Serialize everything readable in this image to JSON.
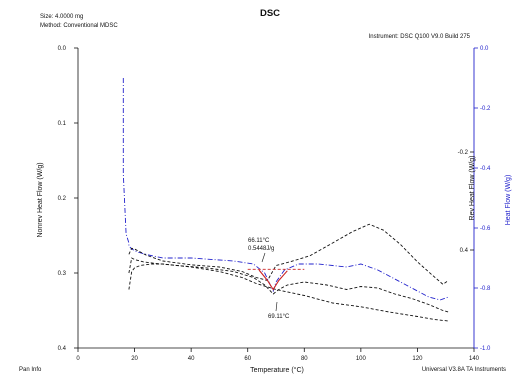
{
  "header": {
    "title": "DSC",
    "size": "Size:  4.0000 mg",
    "method": "Method: Conventional MDSC",
    "instrument": "Instrument: DSC Q100 V9.0 Build 275"
  },
  "footer": {
    "left": "Pan Info",
    "right": "Universal V3.8A TA Instruments"
  },
  "annotations": {
    "peak_temp": "66.11°C",
    "peak_enthalpy": "0.5448J/g",
    "min_temp": "69.11°C"
  },
  "chart_data": {
    "type": "line",
    "title": "DSC",
    "xlabel": "Temperature (°C)",
    "xlim": [
      0,
      140
    ],
    "x_ticks": [
      "0",
      "20",
      "40",
      "60",
      "80",
      "100",
      "120",
      "140"
    ],
    "left_axis": {
      "label": "Nonrev Heat Flow (W/g)",
      "ylim": [
        0.0,
        0.4
      ],
      "inverted": true,
      "ticks": [
        "0.0",
        "0.1",
        "0.2",
        "0.3",
        "0.4"
      ]
    },
    "mid_axis": {
      "label": "Rev Heat Flow (W/g)",
      "ticks": [
        "-0.2",
        "0.4"
      ]
    },
    "right_axis": {
      "label": "Heat Flow (W/g)",
      "color": "#2222cc",
      "ylim": [
        -1.0,
        0.0
      ],
      "ticks": [
        "0.0",
        "-0.2",
        "-0.4",
        "-0.6",
        "-0.8",
        "-1.0"
      ]
    },
    "series": [
      {
        "key": "heat_flow",
        "axis": "right",
        "color": "#2222cc",
        "style": "dash-dot",
        "points": [
          [
            16,
            -0.1
          ],
          [
            16,
            -0.42
          ],
          [
            17,
            -0.62
          ],
          [
            18,
            -0.65
          ],
          [
            18,
            -0.66
          ],
          [
            19,
            -0.67
          ],
          [
            21,
            -0.68
          ],
          [
            25,
            -0.69
          ],
          [
            30,
            -0.7
          ],
          [
            40,
            -0.7
          ],
          [
            55,
            -0.71
          ],
          [
            62,
            -0.72
          ],
          [
            66,
            -0.75
          ],
          [
            68,
            -0.79
          ],
          [
            69,
            -0.81
          ],
          [
            70,
            -0.78
          ],
          [
            73,
            -0.74
          ],
          [
            78,
            -0.72
          ],
          [
            85,
            -0.72
          ],
          [
            95,
            -0.73
          ],
          [
            100,
            -0.72
          ],
          [
            106,
            -0.74
          ],
          [
            112,
            -0.77
          ],
          [
            118,
            -0.8
          ],
          [
            124,
            -0.83
          ],
          [
            128,
            -0.84
          ],
          [
            131,
            -0.83
          ]
        ]
      },
      {
        "key": "rev_heat_flow",
        "axis": "left",
        "color": "#111111",
        "style": "dash",
        "points": [
          [
            18,
            0.275
          ],
          [
            19,
            0.267
          ],
          [
            20,
            0.268
          ],
          [
            24,
            0.276
          ],
          [
            30,
            0.284
          ],
          [
            40,
            0.289
          ],
          [
            50,
            0.292
          ],
          [
            58,
            0.298
          ],
          [
            63,
            0.306
          ],
          [
            67,
            0.31
          ],
          [
            70,
            0.29
          ],
          [
            75,
            0.285
          ],
          [
            82,
            0.277
          ],
          [
            90,
            0.26
          ],
          [
            97,
            0.245
          ],
          [
            103,
            0.235
          ],
          [
            108,
            0.243
          ],
          [
            114,
            0.262
          ],
          [
            120,
            0.285
          ],
          [
            125,
            0.302
          ],
          [
            129,
            0.315
          ],
          [
            131,
            0.31
          ]
        ]
      },
      {
        "key": "nonrev_heat_flow",
        "axis": "left",
        "color": "#111111",
        "style": "dash",
        "points": [
          [
            18,
            0.322
          ],
          [
            18.5,
            0.31
          ],
          [
            19,
            0.298
          ],
          [
            20,
            0.293
          ],
          [
            22,
            0.29
          ],
          [
            26,
            0.288
          ],
          [
            30,
            0.288
          ],
          [
            40,
            0.292
          ],
          [
            50,
            0.298
          ],
          [
            58,
            0.306
          ],
          [
            63,
            0.314
          ],
          [
            70,
            0.322
          ],
          [
            80,
            0.33
          ],
          [
            90,
            0.34
          ],
          [
            100,
            0.345
          ],
          [
            110,
            0.352
          ],
          [
            120,
            0.358
          ],
          [
            126,
            0.362
          ],
          [
            131,
            0.364
          ]
        ]
      },
      {
        "key": "total_lower",
        "axis": "left",
        "color": "#111111",
        "style": "dash",
        "points": [
          [
            18,
            0.3
          ],
          [
            19,
            0.28
          ],
          [
            20,
            0.282
          ],
          [
            23,
            0.285
          ],
          [
            27,
            0.287
          ],
          [
            35,
            0.29
          ],
          [
            45,
            0.293
          ],
          [
            55,
            0.298
          ],
          [
            62,
            0.306
          ],
          [
            66,
            0.316
          ],
          [
            69,
            0.328
          ],
          [
            71,
            0.322
          ],
          [
            74,
            0.316
          ],
          [
            80,
            0.312
          ],
          [
            88,
            0.316
          ],
          [
            95,
            0.322
          ],
          [
            100,
            0.318
          ],
          [
            106,
            0.32
          ],
          [
            112,
            0.328
          ],
          [
            118,
            0.334
          ],
          [
            124,
            0.342
          ],
          [
            129,
            0.35
          ],
          [
            131,
            0.352
          ]
        ]
      },
      {
        "key": "baseline",
        "axis": "left",
        "color": "#cc2222",
        "style": "dash",
        "points": [
          [
            60,
            0.295
          ],
          [
            80,
            0.295
          ]
        ]
      },
      {
        "key": "peak_fill",
        "axis": "left",
        "color": "#cc2222",
        "style": "solid",
        "points": [
          [
            64,
            0.296
          ],
          [
            67,
            0.31
          ],
          [
            69,
            0.322
          ],
          [
            71,
            0.31
          ],
          [
            74,
            0.297
          ]
        ]
      }
    ]
  }
}
